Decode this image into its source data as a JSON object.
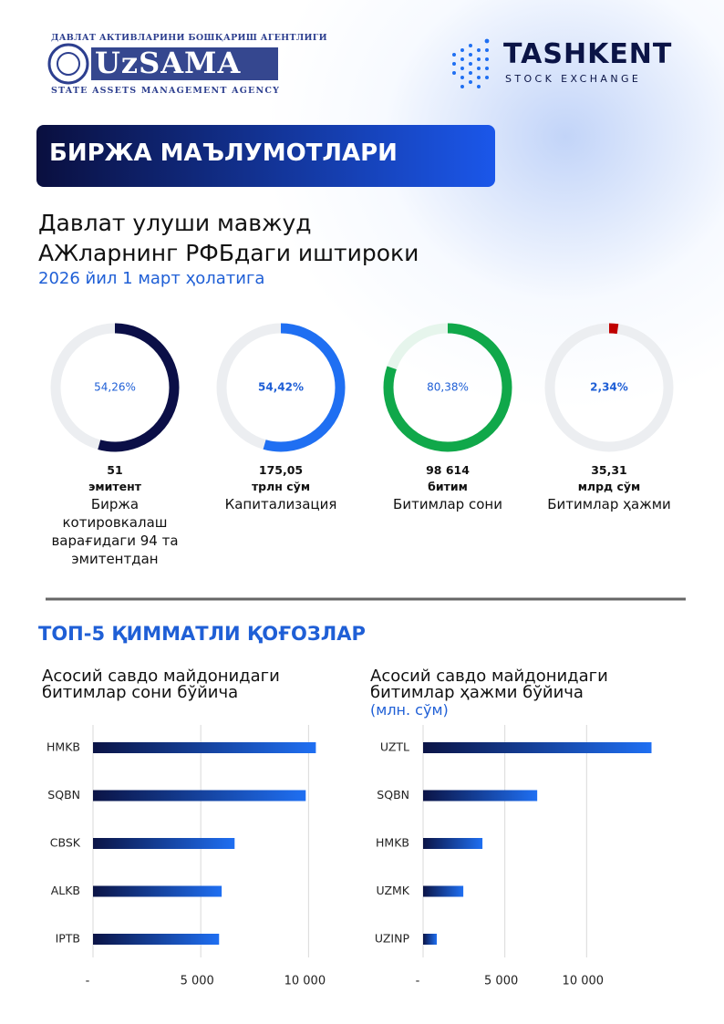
{
  "header": {
    "agency_top": "ДАВЛАТ АКТИВЛАРИНИ БОШҚАРИШ АГЕНТЛИГИ",
    "agency_logo": "UzSAMA",
    "agency_bottom": "STATE ASSETS MANAGEMENT AGENCY",
    "exchange_name": "TASHKENT",
    "exchange_sub": "STOCK EXCHANGE"
  },
  "banner": "БИРЖА МАЪЛУМОТЛАРИ",
  "heading": {
    "line1": "Давлат улуши мавжуд",
    "line2": "АЖларнинг РФБдаги иштироки",
    "date": "2026 йил 1 март ҳолатига"
  },
  "section_title": "ТОП-5 ҚИММАТЛИ ҚОҒОЗЛАР",
  "chart_data": [
    {
      "type": "donut",
      "values": [
        54.26
      ],
      "value_labels": [
        "54,26%"
      ],
      "label_bold": false,
      "color": "#0b0f47",
      "track_color": "#eceef1",
      "stat": "51",
      "stat_unit": "эмитент",
      "caption": "Биржа котировкалаш варағидаги 94 та эмитентдан"
    },
    {
      "type": "donut",
      "values": [
        54.42
      ],
      "value_labels": [
        "54,42%"
      ],
      "label_bold": true,
      "color": "#1f6ff2",
      "track_color": "#eceef1",
      "stat": "175,05",
      "stat_unit": "трлн сўм",
      "caption": "Капитализация"
    },
    {
      "type": "donut",
      "values": [
        80.38
      ],
      "value_labels": [
        "80,38%"
      ],
      "label_bold": false,
      "color": "#10a84a",
      "track_color": "#e6f5ec",
      "stat": "98 614",
      "stat_unit": "битим",
      "caption": "Битимлар сони"
    },
    {
      "type": "donut",
      "values": [
        2.34
      ],
      "value_labels": [
        "2,34%"
      ],
      "label_bold": true,
      "color": "#c00000",
      "track_color": "#eceef1",
      "stat": "35,31",
      "stat_unit": "млрд сўм",
      "caption": "Битимлар ҳажми"
    },
    {
      "type": "bar",
      "orientation": "horizontal",
      "title": "Асосий савдо майдонидаги битимлар сони бўйича",
      "categories": [
        "HMKB",
        "SQBN",
        "CBSK",
        "ALKB",
        "IPTB"
      ],
      "values": [
        10340,
        9870,
        6570,
        5970,
        5850
      ],
      "xlim": [
        0,
        11000
      ],
      "xticks": [
        {
          "value": 0,
          "label": "-"
        },
        {
          "value": 5000,
          "label": "5 000"
        },
        {
          "value": 10000,
          "label": "10 000"
        }
      ],
      "grid": true,
      "color": [
        "#0b1446",
        "#1f6ff2"
      ]
    },
    {
      "type": "bar",
      "orientation": "horizontal",
      "title": "Асосий савдо майдонидаги битимлар ҳажми бўйича",
      "subtitle": "(млн. сўм)",
      "categories": [
        "UZTL",
        "SQBN",
        "HMKB",
        "UZMK",
        "UZINP"
      ],
      "values": [
        13970,
        6980,
        3630,
        2460,
        840
      ],
      "xlim": [
        0,
        14500
      ],
      "xticks": [
        {
          "value": 0,
          "label": "-"
        },
        {
          "value": 5000,
          "label": "5 000"
        },
        {
          "value": 10000,
          "label": "10 000"
        }
      ],
      "grid": true,
      "color": [
        "#0b1446",
        "#1f6ff2"
      ]
    }
  ]
}
